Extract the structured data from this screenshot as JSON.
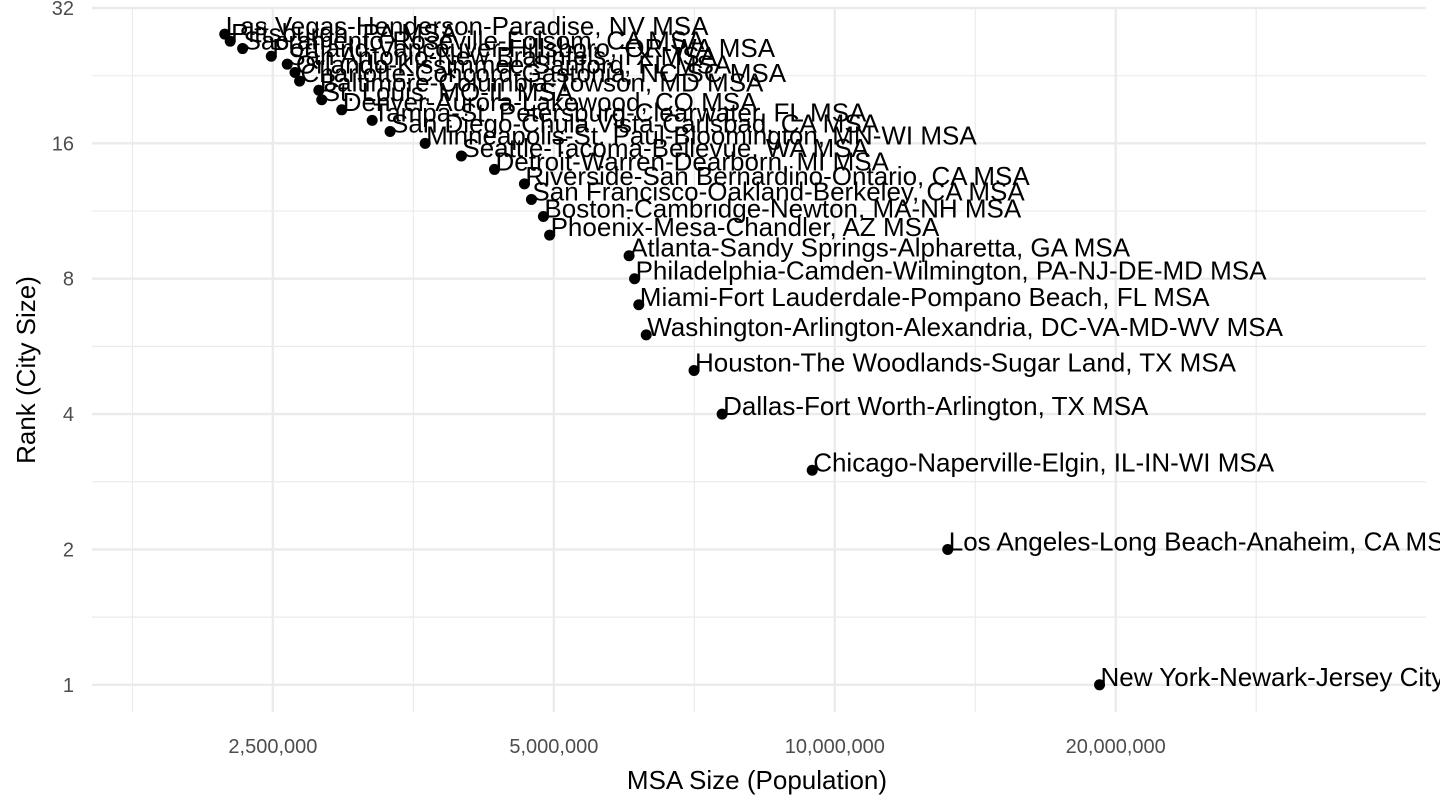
{
  "chart_data": {
    "type": "scatter",
    "title": "",
    "xlabel": "MSA Size (Population)",
    "ylabel": "Rank (City Size)",
    "x_scale": "log",
    "y_scale": "log",
    "xlim": [
      1600000,
      43000000
    ],
    "ylim": [
      0.87,
      32
    ],
    "x_ticks": [
      2500000,
      5000000,
      10000000,
      20000000
    ],
    "x_tick_labels": [
      "2,500,000",
      "5,000,000",
      "10,000,000",
      "20,000,000"
    ],
    "y_ticks": [
      1,
      2,
      4,
      8,
      16,
      32
    ],
    "y_tick_labels": [
      "1",
      "2",
      "4",
      "8",
      "16",
      "32"
    ],
    "grid": true,
    "legend": "none",
    "point_color": "#000000",
    "gridline_color": "#ebebeb",
    "points": [
      {
        "rank": 1,
        "population": 19216000,
        "label": "New York-Newark-Jersey City, NY-NJ-P"
      },
      {
        "rank": 2,
        "population": 13214000,
        "label": "Los Angeles-Long Beach-Anaheim, CA MSA"
      },
      {
        "rank": 3,
        "population": 9458000,
        "label": "Chicago-Naperville-Elgin, IL-IN-WI MSA"
      },
      {
        "rank": 4,
        "population": 7573000,
        "label": "Dallas-Fort Worth-Arlington, TX MSA"
      },
      {
        "rank": 5,
        "population": 7066000,
        "label": "Houston-The Woodlands-Sugar Land, TX MSA"
      },
      {
        "rank": 6,
        "population": 6280000,
        "label": "Washington-Arlington-Alexandria, DC-VA-MD-WV MSA"
      },
      {
        "rank": 7,
        "population": 6166000,
        "label": "Miami-Fort Lauderdale-Pompano Beach, FL MSA"
      },
      {
        "rank": 8,
        "population": 6102000,
        "label": "Philadelphia-Camden-Wilmington, PA-NJ-DE-MD MSA"
      },
      {
        "rank": 9,
        "population": 6020000,
        "label": "Atlanta-Sandy Springs-Alpharetta, GA MSA"
      },
      {
        "rank": 10,
        "population": 4948000,
        "label": "Phoenix-Mesa-Chandler, AZ MSA"
      },
      {
        "rank": 11,
        "population": 4873000,
        "label": "Boston-Cambridge-Newton, MA-NH MSA"
      },
      {
        "rank": 12,
        "population": 4731000,
        "label": "San Francisco-Oakland-Berkeley, CA MSA"
      },
      {
        "rank": 13,
        "population": 4650000,
        "label": "Riverside-San Bernardino-Ontario, CA MSA"
      },
      {
        "rank": 14,
        "population": 4319000,
        "label": "Detroit-Warren-Dearborn, MI MSA"
      },
      {
        "rank": 15,
        "population": 3980000,
        "label": "Seattle-Tacoma-Bellevue, WA MSA"
      },
      {
        "rank": 16,
        "population": 3640000,
        "label": "Minneapolis-St. Paul-Bloomington, MN-WI MSA"
      },
      {
        "rank": 17,
        "population": 3338000,
        "label": "San Diego-Chula Vista-Carlsbad, CA MSA"
      },
      {
        "rank": 18,
        "population": 3194000,
        "label": "Tampa-St. Petersburg-Clearwater, FL MSA"
      },
      {
        "rank": 19,
        "population": 2963000,
        "label": "Denver-Aurora-Lakewood, CO MSA"
      },
      {
        "rank": 20,
        "population": 2820000,
        "label": "St. Louis, MO-IL MSA"
      },
      {
        "rank": 21,
        "population": 2800000,
        "label": "Baltimore-Columbia-Towson, MD MSA"
      },
      {
        "rank": 22,
        "population": 2670000,
        "label": "Charlotte-Concord-Gastonia, NC-SC MSA"
      },
      {
        "rank": 23,
        "population": 2640000,
        "label": "Orlando-Kissimmee-Sanford, FL MSA"
      },
      {
        "rank": 24,
        "population": 2590000,
        "label": "San Antonio-New Braunfels, TX MSA"
      },
      {
        "rank": 25,
        "population": 2490000,
        "label": "Portland-Vancouver-Hillsboro, OR-WA MSA"
      },
      {
        "rank": 26,
        "population": 2320000,
        "label": "Sacramento-Roseville-Folsom, CA MSA"
      },
      {
        "rank": 27,
        "population": 2250000,
        "label": "Pittsburgh, PA MSA"
      },
      {
        "rank": 28,
        "population": 2220000,
        "label": "Las Vegas-Henderson-Paradise, NV MSA"
      }
    ]
  }
}
